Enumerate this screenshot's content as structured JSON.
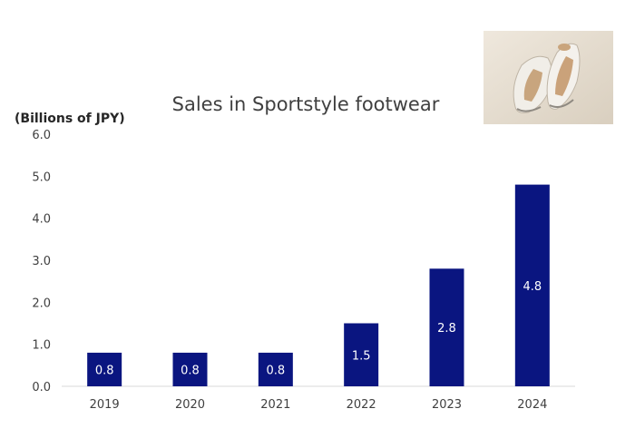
{
  "chart_data": {
    "type": "bar",
    "title": "Sales in Sportstyle footwear",
    "unit_label": "(Billions of JPY)",
    "xlabel": "",
    "ylabel": "",
    "categories": [
      "2019",
      "2020",
      "2021",
      "2022",
      "2023",
      "2024"
    ],
    "values": [
      0.8,
      0.8,
      0.8,
      1.5,
      2.8,
      4.8
    ],
    "data_labels": [
      "0.8",
      "0.8",
      "0.8",
      "1.5",
      "2.8",
      "4.8"
    ],
    "ylim": [
      0,
      6
    ],
    "yticks": [
      "0.0",
      "1.0",
      "2.0",
      "3.0",
      "4.0",
      "5.0",
      "6.0"
    ],
    "grid": false,
    "legend": "none",
    "bar_color": "#0a1580",
    "label_color": "#ffffff"
  },
  "photo": {
    "icon": "sneakers-photo"
  }
}
